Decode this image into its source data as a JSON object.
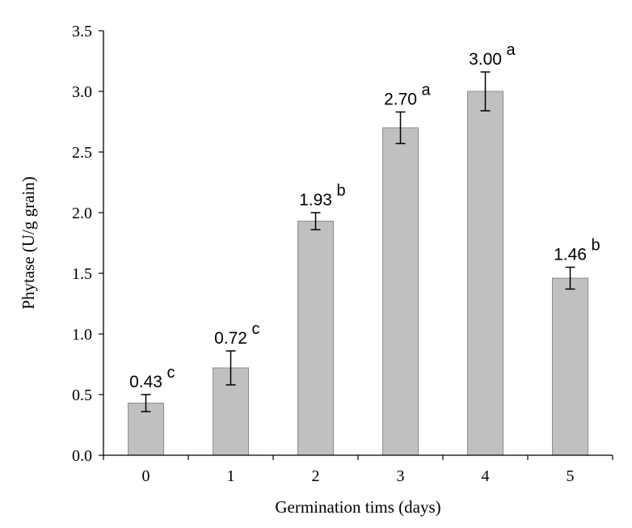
{
  "chart_data": {
    "type": "bar",
    "title": "",
    "xlabel": "Germination tims (days)",
    "ylabel": "Phytase (U/g grain)",
    "categories": [
      "0",
      "1",
      "2",
      "3",
      "4",
      "5"
    ],
    "values": [
      0.43,
      0.72,
      1.93,
      2.7,
      3.0,
      1.46
    ],
    "value_labels": [
      "0.43",
      "0.72",
      "1.93",
      "2.70",
      "3.00",
      "1.46"
    ],
    "error": [
      0.07,
      0.14,
      0.07,
      0.13,
      0.16,
      0.09
    ],
    "significance": [
      "c",
      "c",
      "b",
      "a",
      "a",
      "b"
    ],
    "ylim": [
      0,
      3.5
    ],
    "yticks": [
      "0.0",
      "0.5",
      "1.0",
      "1.5",
      "2.0",
      "2.5",
      "3.0",
      "3.5"
    ],
    "grid": false,
    "legend": "none",
    "colors": {
      "bar_fill": "#c0c0c0",
      "bar_stroke": "#8c8c8c",
      "axis": "#000000"
    }
  }
}
